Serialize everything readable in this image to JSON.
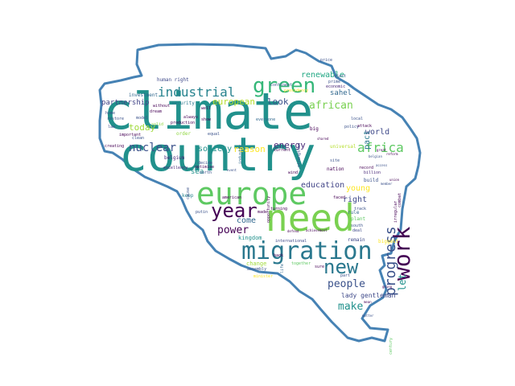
{
  "cloud": {
    "outline_color": "#4682b4",
    "palette": [
      "#440154",
      "#31688e",
      "#21918c",
      "#35b779",
      "#90d743",
      "#fde725"
    ],
    "words": [
      {
        "text": "climate",
        "c": "#21918c"
      },
      {
        "text": "country",
        "c": "#21918c"
      },
      {
        "text": "europe",
        "c": "#5ec962"
      },
      {
        "text": "need",
        "c": "#7ad151"
      },
      {
        "text": "migration",
        "c": "#2a788e"
      },
      {
        "text": "green",
        "c": "#35b779"
      },
      {
        "text": "year",
        "c": "#440154"
      },
      {
        "text": "work",
        "c": "#440154"
      },
      {
        "text": "new",
        "c": "#2a788e"
      },
      {
        "text": "progress",
        "c": "#3b528b"
      },
      {
        "text": "africa",
        "c": "#5ec962"
      },
      {
        "text": "industrial",
        "c": "#26828e"
      },
      {
        "text": "nuclear",
        "c": "#3b528b"
      },
      {
        "text": "power",
        "c": "#440154"
      },
      {
        "text": "people",
        "c": "#3b528b"
      },
      {
        "text": "make",
        "c": "#21918c"
      },
      {
        "text": "african",
        "c": "#7ad151"
      },
      {
        "text": "european",
        "c": "#b5de2b"
      },
      {
        "text": "today",
        "c": "#a0da39"
      },
      {
        "text": "renewable",
        "c": "#22a884"
      },
      {
        "text": "energy",
        "c": "#482878"
      },
      {
        "text": "education",
        "c": "#414487"
      },
      {
        "text": "look",
        "c": "#3b528b"
      },
      {
        "text": "reason",
        "c": "#fde725"
      },
      {
        "text": "society",
        "c": "#21918c"
      },
      {
        "text": "come",
        "c": "#31688e"
      },
      {
        "text": "young",
        "c": "#fde725"
      },
      {
        "text": "right",
        "c": "#3e4989"
      },
      {
        "text": "world",
        "c": "#3e4989"
      },
      {
        "text": "let",
        "c": "#21918c"
      },
      {
        "text": "partnership",
        "c": "#414487"
      },
      {
        "text": "sahel",
        "c": "#31688e"
      },
      {
        "text": "pact",
        "c": "#2a788e"
      },
      {
        "text": "sea",
        "c": "#21918c"
      },
      {
        "text": "kingdom",
        "c": "#21918c"
      },
      {
        "text": "lady gentleman",
        "c": "#3e4989"
      },
      {
        "text": "investment",
        "c": "#31688e"
      },
      {
        "text": "human right",
        "c": "#3e4989"
      },
      {
        "text": "security",
        "c": "#2a788e"
      },
      {
        "text": "belgium",
        "c": "#482878"
      },
      {
        "text": "production",
        "c": "#440154"
      },
      {
        "text": "everyone",
        "c": "#31688e"
      },
      {
        "text": "international",
        "c": "#3e4989"
      },
      {
        "text": "change",
        "c": "#a0da39"
      },
      {
        "text": "together",
        "c": "#5ec962"
      },
      {
        "text": "assembly",
        "c": "#3b528b"
      },
      {
        "text": "minister",
        "c": "#fde725"
      },
      {
        "text": "order",
        "c": "#90d743"
      },
      {
        "text": "keep",
        "c": "#26828e"
      },
      {
        "text": "home",
        "c": "#3b528b"
      },
      {
        "text": "made",
        "c": "#440154"
      },
      {
        "text": "turning",
        "c": "#440154"
      },
      {
        "text": "remain",
        "c": "#3e4989"
      },
      {
        "text": "biggest",
        "c": "#fde725"
      },
      {
        "text": "build",
        "c": "#3b528b"
      },
      {
        "text": "plant",
        "c": "#5ec962"
      },
      {
        "text": "rule",
        "c": "#31688e"
      },
      {
        "text": "deal",
        "c": "#3e4989"
      },
      {
        "text": "south",
        "c": "#3b528b"
      },
      {
        "text": "price",
        "c": "#3b528b"
      },
      {
        "text": "prime",
        "c": "#3b528b"
      },
      {
        "text": "economic",
        "c": "#482878"
      },
      {
        "text": "policy",
        "c": "#3b528b"
      },
      {
        "text": "local",
        "c": "#3b528b"
      },
      {
        "text": "big",
        "c": "#440154"
      },
      {
        "text": "site",
        "c": "#3b528b"
      },
      {
        "text": "nation",
        "c": "#440154"
      },
      {
        "text": "wind",
        "c": "#440154"
      },
      {
        "text": "decide",
        "c": "#3b528b"
      },
      {
        "text": "optimise",
        "c": "#440154"
      },
      {
        "text": "north",
        "c": "#3b528b"
      },
      {
        "text": "excellency",
        "c": "#482878"
      },
      {
        "text": "american",
        "c": "#440154"
      },
      {
        "text": "event",
        "c": "#3b528b"
      },
      {
        "text": "current",
        "c": "#440154"
      },
      {
        "text": "universal",
        "c": "#b5de2b"
      },
      {
        "text": "record",
        "c": "#440154"
      },
      {
        "text": "billion",
        "c": "#482878"
      },
      {
        "text": "access",
        "c": "#3b528b"
      },
      {
        "text": "start",
        "c": "#3b528b"
      },
      {
        "text": "industry",
        "c": "#31688e"
      },
      {
        "text": "continent",
        "c": "#3b528b"
      },
      {
        "text": "presidency",
        "c": "#fde725"
      },
      {
        "text": "restore",
        "c": "#3b528b"
      },
      {
        "text": "law",
        "c": "#3b528b"
      },
      {
        "text": "important",
        "c": "#440154"
      },
      {
        "text": "show",
        "c": "#440154"
      },
      {
        "text": "well",
        "c": "#440154"
      },
      {
        "text": "always",
        "c": "#440154"
      },
      {
        "text": "dream",
        "c": "#440154"
      },
      {
        "text": "without",
        "c": "#440154"
      },
      {
        "text": "equal",
        "c": "#3b528b"
      },
      {
        "text": "creating",
        "c": "#440154"
      },
      {
        "text": "putin",
        "c": "#3b528b"
      },
      {
        "text": "opportunity",
        "c": "#440154"
      },
      {
        "text": "faced",
        "c": "#440154"
      },
      {
        "text": "track",
        "c": "#3b528b"
      },
      {
        "text": "achievement",
        "c": "#440154"
      },
      {
        "text": "defend",
        "c": "#440154"
      },
      {
        "text": "century",
        "c": "#5ec962"
      },
      {
        "text": "matter",
        "c": "#3b528b"
      },
      {
        "text": "mean",
        "c": "#440154"
      },
      {
        "text": "going",
        "c": "#440154"
      },
      {
        "text": "strengthen",
        "c": "#3b528b"
      },
      {
        "text": "cause",
        "c": "#3b528b"
      },
      {
        "text": "life",
        "c": "#31688e"
      },
      {
        "text": "back",
        "c": "#440154"
      },
      {
        "text": "sure",
        "c": "#440154"
      },
      {
        "text": "part",
        "c": "#3b528b"
      },
      {
        "text": "irregular",
        "c": "#440154"
      },
      {
        "text": "combat",
        "c": "#440154"
      },
      {
        "text": "solid",
        "c": "#90d743"
      },
      {
        "text": "clean",
        "c": "#3b528b"
      },
      {
        "text": "model",
        "c": "#3b528b"
      },
      {
        "text": "attack",
        "c": "#440154"
      },
      {
        "text": "member",
        "c": "#3b528b"
      },
      {
        "text": "union",
        "c": "#440154"
      },
      {
        "text": "reform",
        "c": "#440154"
      },
      {
        "text": "belgian",
        "c": "#3b528b"
      },
      {
        "text": "great",
        "c": "#440154"
      },
      {
        "text": "shared",
        "c": "#440154"
      }
    ]
  }
}
